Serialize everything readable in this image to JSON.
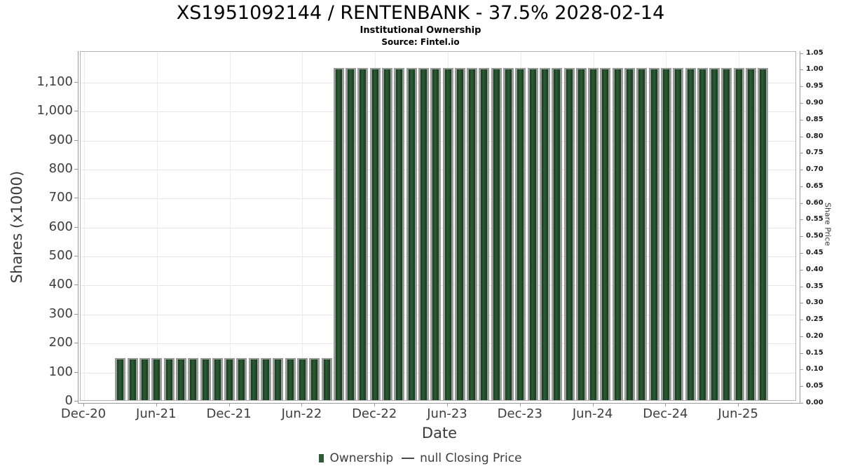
{
  "chart_data": {
    "type": "bar",
    "title": "XS1951092144 / RENTENBANK - 37.5% 2028-02-14",
    "subtitle": "Institutional Ownership",
    "source": "Source: Fintel.io",
    "xlabel": "Date",
    "ylabel_left": "Shares (x1000)",
    "ylabel_right": "Share Price",
    "grid": true,
    "legend_position": "bottom",
    "x_ticks": [
      "Dec-20",
      "Jun-21",
      "Dec-21",
      "Jun-22",
      "Dec-22",
      "Jun-23",
      "Dec-23",
      "Jun-24",
      "Dec-24",
      "Jun-25"
    ],
    "x_first_month_offset": 3,
    "y_left_ticks": [
      "0",
      "100",
      "200",
      "300",
      "400",
      "500",
      "600",
      "700",
      "800",
      "900",
      "1,000",
      "1,100"
    ],
    "y_right_ticks": [
      "0.00",
      "0.05",
      "0.10",
      "0.15",
      "0.20",
      "0.25",
      "0.30",
      "0.35",
      "0.40",
      "0.45",
      "0.50",
      "0.55",
      "0.60",
      "0.65",
      "0.70",
      "0.75",
      "0.80",
      "0.85",
      "0.90",
      "0.95",
      "1.00",
      "1.05"
    ],
    "ylim_left": [
      0,
      1206
    ],
    "ylim_right": [
      0,
      1.06
    ],
    "categories": [
      "Mar-21",
      "Apr-21",
      "May-21",
      "Jun-21",
      "Jul-21",
      "Aug-21",
      "Sep-21",
      "Oct-21",
      "Nov-21",
      "Dec-21",
      "Jan-22",
      "Feb-22",
      "Mar-22",
      "Apr-22",
      "May-22",
      "Jun-22",
      "Jul-22",
      "Aug-22",
      "Sep-22",
      "Oct-22",
      "Nov-22",
      "Dec-22",
      "Jan-23",
      "Feb-23",
      "Mar-23",
      "Apr-23",
      "May-23",
      "Jun-23",
      "Jul-23",
      "Aug-23",
      "Sep-23",
      "Oct-23",
      "Nov-23",
      "Dec-23",
      "Jan-24",
      "Feb-24",
      "Mar-24",
      "Apr-24",
      "May-24",
      "Jun-24",
      "Jul-24",
      "Aug-24",
      "Sep-24",
      "Oct-24",
      "Nov-24",
      "Dec-24",
      "Jan-25",
      "Feb-25",
      "Mar-25",
      "Apr-25",
      "May-25",
      "Jun-25",
      "Jul-25",
      "Aug-25"
    ],
    "series": [
      {
        "name": "Ownership",
        "type": "bar",
        "color": "#1e4a26",
        "values": [
          140,
          140,
          140,
          140,
          140,
          140,
          140,
          140,
          140,
          140,
          140,
          140,
          140,
          140,
          140,
          140,
          140,
          140,
          1140,
          1140,
          1140,
          1140,
          1140,
          1140,
          1140,
          1140,
          1140,
          1140,
          1140,
          1140,
          1140,
          1140,
          1140,
          1140,
          1140,
          1140,
          1140,
          1140,
          1140,
          1140,
          1140,
          1140,
          1140,
          1140,
          1140,
          1140,
          1140,
          1140,
          1140,
          1140,
          1140,
          1140,
          1140,
          1140
        ]
      },
      {
        "name": "null Closing Price",
        "type": "line",
        "color": "#4a4a4a",
        "values": []
      }
    ],
    "legend": [
      {
        "label": "Ownership",
        "marker": "square",
        "color": "#2d5c36"
      },
      {
        "label": "null Closing Price",
        "marker": "line",
        "color": "#4a4a4a"
      }
    ],
    "colors": {
      "bar_edge": "#163a1c",
      "bar_mid": "#2b5c34",
      "bar_shadow": "#9a9a9a",
      "grid": "#e6e6e6",
      "axis": "#999999",
      "text": "#3d3d3d"
    }
  }
}
